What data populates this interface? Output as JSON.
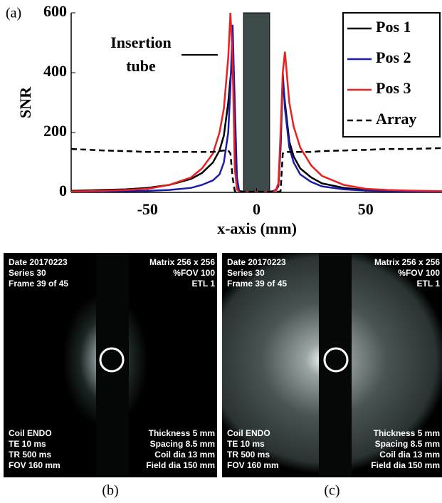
{
  "chart_data": {
    "type": "line",
    "panel_label": "(a)",
    "xlabel": "x-axis (mm)",
    "ylabel": "SNR",
    "xlim": [
      -85,
      85
    ],
    "ylim": [
      0,
      600
    ],
    "xticks": [
      -50,
      0,
      50
    ],
    "yticks": [
      0,
      200,
      400,
      600
    ],
    "legend": "upper right",
    "tube": [
      -6,
      6
    ],
    "annotation": [
      "Insertion",
      "tube"
    ],
    "x": [
      -85,
      -70,
      -60,
      -50,
      -40,
      -30,
      -25,
      -20,
      -17,
      -15,
      -13,
      -12,
      -11,
      -10,
      -9,
      -8,
      -6,
      -4,
      0,
      4,
      6,
      8,
      9,
      10,
      11,
      12,
      13,
      15,
      17,
      20,
      25,
      30,
      40,
      50,
      60,
      70,
      85
    ],
    "series": [
      {
        "name": "Pos 1",
        "color": "#000000",
        "style": "solid",
        "values": [
          5,
          8,
          10,
          15,
          25,
          45,
          65,
          100,
          140,
          190,
          300,
          380,
          440,
          200,
          30,
          5,
          2,
          0,
          0,
          0,
          2,
          5,
          10,
          30,
          150,
          380,
          300,
          170,
          120,
          80,
          50,
          30,
          15,
          8,
          5,
          4,
          3
        ]
      },
      {
        "name": "Pos 2",
        "color": "#1c1ca8",
        "style": "solid",
        "values": [
          2,
          3,
          4,
          5,
          8,
          15,
          25,
          40,
          60,
          100,
          200,
          350,
          560,
          300,
          50,
          5,
          2,
          0,
          0,
          0,
          2,
          5,
          8,
          20,
          150,
          400,
          280,
          150,
          100,
          60,
          35,
          20,
          10,
          6,
          4,
          3,
          2
        ]
      },
      {
        "name": "Pos 3",
        "color": "#e82020",
        "style": "solid",
        "values": [
          3,
          5,
          8,
          12,
          25,
          50,
          80,
          130,
          200,
          280,
          450,
          600,
          450,
          80,
          10,
          3,
          1,
          0,
          0,
          0,
          1,
          3,
          8,
          30,
          200,
          400,
          470,
          300,
          220,
          150,
          90,
          55,
          25,
          12,
          8,
          6,
          4
        ]
      },
      {
        "name": "Array",
        "color": "#000000",
        "style": "dashed",
        "values": [
          145,
          140,
          138,
          135,
          135,
          135,
          135,
          135,
          138,
          140,
          140,
          130,
          50,
          5,
          2,
          2,
          2,
          2,
          2,
          2,
          2,
          2,
          2,
          2,
          5,
          130,
          135,
          135,
          135,
          135,
          135,
          138,
          140,
          142,
          145,
          145,
          148
        ]
      }
    ]
  },
  "panels": [
    {
      "label": "(b)",
      "top_left": [
        "Date 20170223",
        "Series 30",
        "Frame 39 of 45"
      ],
      "top_right": [
        "Matrix 256 x 256",
        "%FOV 100",
        "ETL 1"
      ],
      "bottom_left": [
        "Coil ENDO",
        "TE 10 ms",
        "TR 500 ms",
        "FOV 160 mm"
      ],
      "bottom_right": [
        "Thickness 5 mm",
        "Spacing 8.5 mm",
        "Coil dia 13 mm",
        "Field dia 150 mm"
      ]
    },
    {
      "label": "(c)",
      "top_left": [
        "Date 20170223",
        "Series 30",
        "Frame 39 of 45"
      ],
      "top_right": [
        "Matrix 256 x 256",
        "%FOV 100",
        "ETL 1"
      ],
      "bottom_left": [
        "Coil ENDO",
        "TE 10 ms",
        "TR 500 ms",
        "FOV 160 mm"
      ],
      "bottom_right": [
        "Thickness 5 mm",
        "Spacing 8.5 mm",
        "Coil dia 13 mm",
        "Field dia 150 mm"
      ]
    }
  ]
}
